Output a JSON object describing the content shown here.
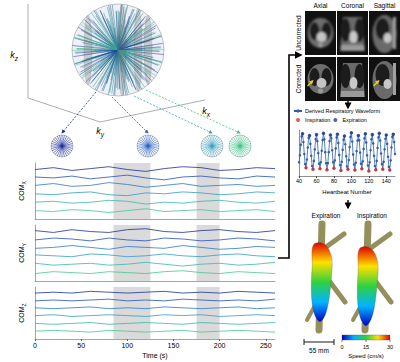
{
  "kspace": {
    "axes": [
      {
        "text": "k",
        "sub": "z"
      },
      {
        "text": "k",
        "sub": "y"
      },
      {
        "text": "k",
        "sub": "x"
      }
    ]
  },
  "mri": {
    "columns": [
      "Axial",
      "Coronal",
      "Sagittal"
    ],
    "rows": [
      "Uncorrected",
      "Corrected"
    ]
  },
  "chart_data": [
    {
      "type": "line",
      "xlabel": "Time (s)",
      "x": [
        0,
        20,
        40,
        60,
        80,
        100,
        120,
        140,
        160,
        180,
        200,
        220,
        240,
        260
      ],
      "xlim": [
        0,
        260
      ],
      "xticks": [
        0,
        50,
        100,
        150,
        200,
        250
      ],
      "tick_labels": "x",
      "grid": false,
      "shaded_ranges": [
        [
          85,
          125
        ],
        [
          175,
          200
        ]
      ],
      "panels": [
        {
          "ylabel": {
            "text": "COM",
            "sub": "X"
          },
          "ylim": [
            0,
            6
          ],
          "series": [
            {
              "color": "#1b2fa0",
              "values": [
                5.3,
                5.5,
                5.2,
                5.4,
                5.6,
                5.3,
                5.1,
                5.4,
                5.6,
                5.5,
                5.2,
                5.3,
                5.5,
                5.4
              ]
            },
            {
              "color": "#2450bd",
              "values": [
                4.5,
                4.4,
                4.6,
                4.3,
                4.5,
                4.7,
                4.4,
                4.2,
                4.5,
                4.6,
                4.4,
                4.3,
                4.6,
                4.5
              ]
            },
            {
              "color": "#2c78cc",
              "values": [
                3.6,
                3.8,
                3.5,
                3.6,
                3.9,
                3.7,
                3.4,
                3.6,
                3.8,
                3.5,
                3.6,
                3.7,
                3.5,
                3.6
              ]
            },
            {
              "color": "#329cc6",
              "values": [
                2.7,
                2.6,
                2.8,
                2.9,
                2.6,
                2.5,
                2.8,
                2.7,
                2.9,
                2.8,
                2.6,
                2.7,
                2.9,
                2.8
              ]
            },
            {
              "color": "#38b6ad",
              "values": [
                1.8,
                1.9,
                1.7,
                1.8,
                2.0,
                1.9,
                1.6,
                1.8,
                1.7,
                1.9,
                2.0,
                1.8,
                1.7,
                1.9
              ]
            },
            {
              "color": "#45c68f",
              "values": [
                0.9,
                0.8,
                1.0,
                0.9,
                0.7,
                0.9,
                1.1,
                0.8,
                0.9,
                1.0,
                0.8,
                0.9,
                1.0,
                0.8
              ]
            }
          ]
        },
        {
          "ylabel": {
            "text": "COM",
            "sub": "Y"
          },
          "ylim": [
            0,
            6
          ],
          "series": [
            {
              "color": "#1b2fa0",
              "values": [
                5.4,
                5.2,
                5.5,
                5.3,
                5.2,
                5.5,
                5.6,
                5.3,
                5.2,
                5.4,
                5.5,
                5.3,
                5.2,
                5.4
              ]
            },
            {
              "color": "#2450bd",
              "values": [
                4.4,
                4.6,
                4.5,
                4.3,
                4.6,
                4.4,
                4.3,
                4.6,
                4.5,
                4.3,
                4.4,
                4.6,
                4.5,
                4.3
              ]
            },
            {
              "color": "#2c78cc",
              "values": [
                3.5,
                3.6,
                3.8,
                3.6,
                3.4,
                3.7,
                3.6,
                3.5,
                3.8,
                3.6,
                3.4,
                3.5,
                3.7,
                3.6
              ]
            },
            {
              "color": "#329cc6",
              "values": [
                2.8,
                2.7,
                2.6,
                2.9,
                2.8,
                2.6,
                2.7,
                2.9,
                2.7,
                2.6,
                2.8,
                2.9,
                2.7,
                2.6
              ]
            },
            {
              "color": "#38b6ad",
              "values": [
                1.9,
                1.7,
                1.8,
                1.9,
                1.7,
                1.8,
                2.0,
                1.8,
                1.6,
                1.8,
                1.9,
                1.7,
                1.8,
                2.0
              ]
            },
            {
              "color": "#45c68f",
              "values": [
                0.8,
                1.0,
                0.9,
                0.8,
                1.0,
                0.9,
                0.8,
                1.0,
                1.1,
                0.9,
                0.8,
                1.0,
                0.9,
                0.8
              ]
            }
          ]
        },
        {
          "ylabel": {
            "text": "COM",
            "sub": "Z"
          },
          "ylim": [
            0,
            6
          ],
          "series": [
            {
              "color": "#1b2fa0",
              "values": [
                5.3,
                5.4,
                5.3,
                5.5,
                5.4,
                5.3,
                5.4,
                5.5,
                5.3,
                5.4,
                5.3,
                5.5,
                5.4,
                5.3
              ]
            },
            {
              "color": "#2450bd",
              "values": [
                4.4,
                4.5,
                4.4,
                4.5,
                4.6,
                4.4,
                4.5,
                4.4,
                4.6,
                4.5,
                4.4,
                4.5,
                4.4,
                4.6
              ]
            },
            {
              "color": "#2c78cc",
              "values": [
                3.6,
                3.5,
                3.6,
                3.7,
                3.5,
                3.6,
                3.5,
                3.7,
                3.6,
                3.5,
                3.6,
                3.7,
                3.5,
                3.6
              ]
            },
            {
              "color": "#329cc6",
              "values": [
                2.7,
                2.8,
                2.6,
                2.7,
                2.8,
                2.7,
                2.6,
                2.8,
                2.7,
                2.8,
                2.6,
                2.7,
                2.8,
                2.7
              ]
            },
            {
              "color": "#38b6ad",
              "values": [
                1.8,
                1.7,
                1.8,
                1.9,
                1.7,
                1.8,
                1.9,
                1.8,
                1.7,
                1.9,
                1.8,
                1.7,
                1.8,
                1.9
              ]
            },
            {
              "color": "#45c68f",
              "values": [
                0.9,
                1.0,
                0.9,
                0.8,
                1.0,
                0.9,
                0.8,
                0.9,
                1.0,
                0.8,
                0.9,
                1.0,
                0.9,
                0.8
              ]
            }
          ]
        }
      ]
    },
    {
      "type": "line",
      "xlabel": "Heartbeat Number",
      "xlim": [
        40,
        150
      ],
      "xticks": [
        40,
        60,
        80,
        100,
        120,
        140
      ],
      "ylim": [
        0,
        1
      ],
      "tick_labels": "x",
      "grid": false,
      "legend": "top",
      "series": [
        {
          "name": "Derived Respiratory Waveform",
          "color": "#2e5fa8",
          "marker": "circle",
          "x": [
            40,
            41,
            42,
            43,
            44,
            45,
            46,
            47,
            48,
            49,
            50,
            51,
            52,
            53,
            54,
            55,
            56,
            57,
            58,
            59,
            60,
            61,
            62,
            63,
            64,
            65,
            66,
            67,
            68,
            69,
            70,
            71,
            72,
            73,
            74,
            75,
            76,
            77,
            78,
            79,
            80,
            81,
            82,
            83,
            84,
            85,
            86,
            87,
            88,
            89,
            90,
            91,
            92,
            93,
            94,
            95,
            96,
            97,
            98,
            99,
            100,
            101,
            102,
            103,
            104,
            105,
            106,
            107,
            108,
            109,
            110,
            111,
            112,
            113,
            114,
            115,
            116,
            117,
            118,
            119,
            120,
            121,
            122,
            123,
            124,
            125,
            126,
            127,
            128,
            129,
            130,
            131,
            132,
            133,
            134,
            135,
            136,
            137,
            138,
            139,
            140,
            141,
            142,
            143,
            144,
            145,
            146,
            147,
            148,
            149,
            150
          ],
          "values": [
            0.3,
            0.45,
            0.68,
            0.86,
            0.92,
            0.74,
            0.48,
            0.26,
            0.18,
            0.36,
            0.62,
            0.83,
            0.88,
            0.7,
            0.44,
            0.22,
            0.15,
            0.33,
            0.58,
            0.8,
            0.9,
            0.76,
            0.5,
            0.27,
            0.16,
            0.3,
            0.55,
            0.78,
            0.93,
            0.8,
            0.52,
            0.28,
            0.14,
            0.28,
            0.52,
            0.76,
            0.89,
            0.82,
            0.56,
            0.3,
            0.17,
            0.34,
            0.6,
            0.84,
            0.91,
            0.72,
            0.46,
            0.24,
            0.12,
            0.31,
            0.57,
            0.79,
            0.87,
            0.69,
            0.43,
            0.21,
            0.15,
            0.35,
            0.63,
            0.85,
            0.94,
            0.75,
            0.47,
            0.25,
            0.13,
            0.29,
            0.54,
            0.77,
            0.88,
            0.78,
            0.51,
            0.27,
            0.16,
            0.32,
            0.59,
            0.82,
            0.92,
            0.73,
            0.45,
            0.23,
            0.11,
            0.3,
            0.56,
            0.8,
            0.9,
            0.71,
            0.44,
            0.22,
            0.14,
            0.33,
            0.61,
            0.84,
            0.93,
            0.77,
            0.49,
            0.26,
            0.15,
            0.31,
            0.58,
            0.81,
            0.89,
            0.7,
            0.42,
            0.2,
            0.13,
            0.34,
            0.62,
            0.85,
            0.91,
            0.74,
            0.48
          ]
        },
        {
          "name": "Inspiration",
          "type": "scatter",
          "color": "#e0302a",
          "marker": "circle",
          "x": [
            48,
            56,
            64,
            72,
            80,
            88,
            96,
            104,
            112,
            120,
            128,
            136,
            144
          ],
          "values": [
            0.18,
            0.15,
            0.16,
            0.14,
            0.17,
            0.12,
            0.15,
            0.13,
            0.16,
            0.11,
            0.14,
            0.15,
            0.13
          ]
        },
        {
          "name": "Expiration",
          "type": "scatter",
          "color": "#1f3f8f",
          "marker": "circle",
          "x": [
            44,
            52,
            60,
            68,
            76,
            84,
            92,
            100,
            108,
            116,
            124,
            132,
            140,
            148
          ],
          "values": [
            0.92,
            0.88,
            0.9,
            0.93,
            0.89,
            0.91,
            0.87,
            0.94,
            0.88,
            0.92,
            0.9,
            0.93,
            0.89,
            0.91
          ]
        }
      ]
    }
  ],
  "flow": {
    "panels": [
      "Expiration",
      "Inspiration"
    ],
    "scale_bar": "55 mm",
    "colorbar": {
      "range": [
        0,
        30
      ],
      "ticks": [
        0,
        15,
        30
      ],
      "label": "Speed (cm/s)"
    }
  }
}
